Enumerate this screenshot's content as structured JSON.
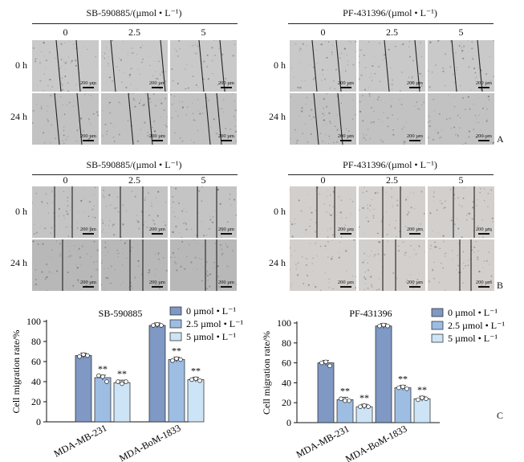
{
  "rowA": {
    "left_header": "SB-590885/(µmol • L⁻¹)",
    "right_header": "PF-431396/(µmol • L⁻¹)",
    "columns": [
      "0",
      "2.5",
      "5"
    ],
    "rows": [
      "0 h",
      "24 h"
    ],
    "scale_bar": "200 µm",
    "panel_label": "A"
  },
  "rowB": {
    "left_header": "SB-590885/(µmol • L⁻¹)",
    "right_header": "PF-431396/(µmol • L⁻¹)",
    "columns": [
      "0",
      "2.5",
      "5"
    ],
    "rows": [
      "0 h",
      "24 h"
    ],
    "scale_bar": "200 µm",
    "panel_label": "B"
  },
  "panel_c_label": "C",
  "chart_data": [
    {
      "type": "bar",
      "title": "SB-590885",
      "ylabel": "Cell migration rate/%",
      "ylim": [
        0,
        100
      ],
      "yticks": [
        "0",
        "20",
        "40",
        "60",
        "80",
        "100"
      ],
      "categories": [
        "MDA-MB-231",
        "MDA-BoM-1833"
      ],
      "series": [
        {
          "name": "0 µmol • L⁻¹",
          "values": [
            66,
            96
          ],
          "color": "#7f98c4",
          "points": [
            [
              65,
              67,
              66
            ],
            [
              96,
              97,
              96
            ]
          ]
        },
        {
          "name": "2.5 µmol • L⁻¹",
          "values": [
            44,
            62
          ],
          "color": "#9dbde3",
          "points": [
            [
              46,
              45,
              40
            ],
            [
              61,
              63,
              62
            ]
          ]
        },
        {
          "name": "5 µmol • L⁻¹",
          "values": [
            39,
            42
          ],
          "color": "#cde4f6",
          "points": [
            [
              40,
              38,
              40
            ],
            [
              42,
              43,
              41
            ]
          ]
        }
      ],
      "significance": [
        [
          "",
          "**",
          "**"
        ],
        [
          "",
          "**",
          "**"
        ]
      ],
      "legend": "top-right"
    },
    {
      "type": "bar",
      "title": "PF-431396",
      "ylabel": "Cell migration rate/%",
      "ylim": [
        0,
        100
      ],
      "yticks": [
        "0",
        "20",
        "40",
        "60",
        "80",
        "100"
      ],
      "categories": [
        "MDA-MB-231",
        "MDA-BoM-1833"
      ],
      "series": [
        {
          "name": "0 µmol • L⁻¹",
          "values": [
            60,
            97
          ],
          "color": "#7f98c4",
          "points": [
            [
              60,
              61,
              57
            ],
            [
              97,
              98,
              97
            ]
          ]
        },
        {
          "name": "2.5 µmol • L⁻¹",
          "values": [
            23,
            35
          ],
          "color": "#9dbde3",
          "points": [
            [
              24,
              22,
              22
            ],
            [
              35,
              36,
              34
            ]
          ]
        },
        {
          "name": "5 µmol • L⁻¹",
          "values": [
            16,
            24
          ],
          "color": "#cde4f6",
          "points": [
            [
              16,
              17,
              16
            ],
            [
              23,
              25,
              24
            ]
          ]
        }
      ],
      "significance": [
        [
          "",
          "**",
          "**"
        ],
        [
          "",
          "**",
          "**"
        ]
      ],
      "legend": "top-right"
    }
  ]
}
